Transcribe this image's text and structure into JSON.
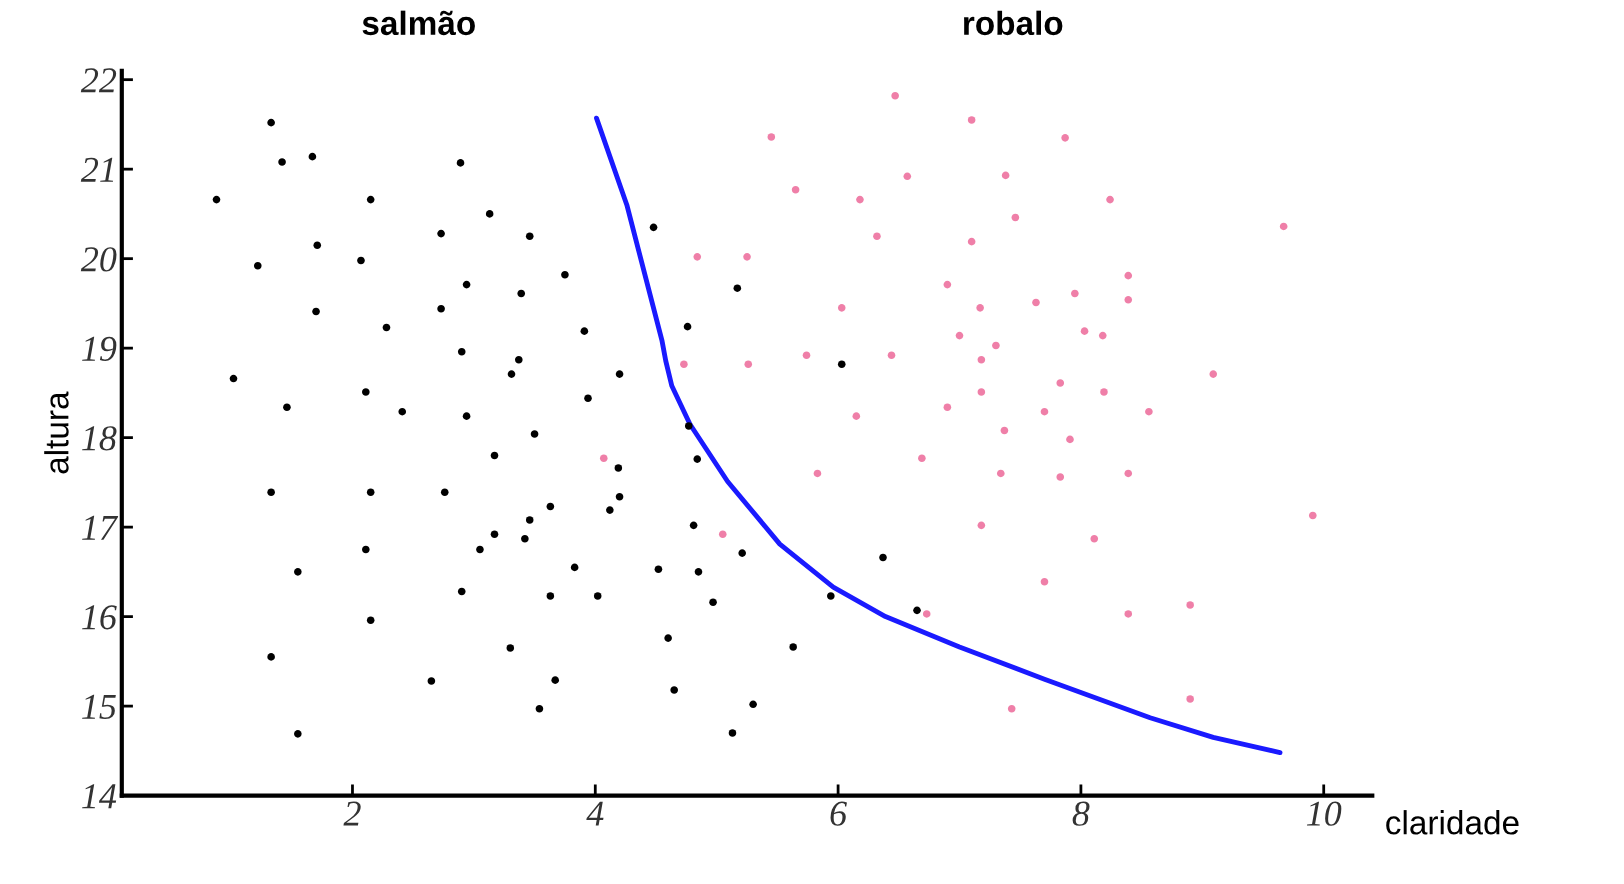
{
  "chart_data": {
    "type": "scatter",
    "xlabel": "claridade",
    "ylabel": "altura",
    "xlim": [
      0.1,
      10.4
    ],
    "ylim": [
      14,
      22.1
    ],
    "xticks": [
      2,
      4,
      6,
      8,
      10
    ],
    "yticks": [
      14,
      15,
      16,
      17,
      18,
      19,
      20,
      21,
      22
    ],
    "grid": false,
    "marker": "circle",
    "annotations": [
      "salmão",
      "robalo"
    ],
    "series": [
      {
        "color": "#000000",
        "x": [
          0.88,
          1.33,
          1.42,
          1.67,
          1.22,
          1.71,
          1.02,
          1.7,
          1.46,
          1.33,
          1.55,
          1.33,
          1.55,
          2.15,
          2.07,
          2.28,
          2.11,
          2.41,
          2.15,
          2.11,
          2.15,
          2.89,
          2.73,
          3.13,
          3.46,
          2.73,
          2.94,
          3.39,
          3.75,
          2.9,
          3.37,
          3.31,
          3.91,
          4.2,
          3.94,
          2.94,
          3.5,
          3.17,
          2.76,
          3.63,
          4.19,
          4.2,
          4.12,
          3.46,
          3.42,
          3.17,
          3.05,
          3.83,
          2.9,
          3.63,
          4.02,
          3.3,
          3.67,
          2.65,
          3.54,
          4.48,
          4.76,
          5.17,
          4.77,
          4.84,
          4.81,
          4.85,
          4.52,
          5.21,
          4.97,
          4.6,
          4.65,
          5.3,
          5.13,
          5.63,
          5.94,
          6.03,
          6.37,
          6.65
        ],
        "values": [
          20.66,
          21.52,
          21.08,
          21.14,
          19.92,
          20.15,
          18.66,
          19.41,
          18.34,
          17.39,
          16.5,
          15.55,
          14.69,
          20.66,
          19.98,
          19.23,
          18.51,
          18.29,
          17.39,
          16.75,
          15.96,
          21.07,
          20.28,
          20.5,
          20.25,
          19.44,
          19.71,
          19.61,
          19.82,
          18.96,
          18.87,
          18.71,
          19.19,
          18.71,
          18.44,
          18.24,
          18.04,
          17.8,
          17.39,
          17.23,
          17.66,
          17.34,
          17.19,
          17.08,
          16.87,
          16.92,
          16.75,
          16.55,
          16.28,
          16.23,
          16.23,
          15.65,
          15.29,
          15.28,
          14.97,
          20.35,
          19.24,
          19.67,
          18.13,
          17.76,
          17.02,
          16.5,
          16.53,
          16.71,
          16.16,
          15.76,
          15.18,
          15.02,
          14.7,
          15.66,
          16.23,
          18.82,
          16.66,
          16.07
        ]
      },
      {
        "color": "#ef7fa8",
        "x": [
          6.47,
          7.1,
          5.45,
          7.87,
          6.57,
          7.38,
          5.65,
          6.18,
          7.46,
          8.24,
          9.67,
          6.32,
          7.1,
          4.84,
          5.25,
          8.39,
          6.9,
          7.95,
          8.39,
          7.63,
          6.03,
          7.17,
          7.0,
          8.03,
          8.18,
          7.3,
          7.18,
          6.44,
          5.74,
          5.26,
          4.73,
          9.09,
          7.83,
          7.18,
          8.19,
          6.9,
          7.7,
          8.56,
          6.15,
          7.37,
          7.91,
          4.07,
          6.69,
          5.83,
          7.34,
          7.83,
          8.39,
          9.91,
          7.18,
          8.11,
          5.05,
          7.7,
          6.73,
          8.39,
          8.9,
          8.9,
          7.43
        ],
        "values": [
          21.82,
          21.55,
          21.36,
          21.35,
          20.92,
          20.93,
          20.77,
          20.66,
          20.46,
          20.66,
          20.36,
          20.25,
          20.19,
          20.02,
          20.02,
          19.81,
          19.71,
          19.61,
          19.54,
          19.51,
          19.45,
          19.45,
          19.14,
          19.19,
          19.14,
          19.03,
          18.87,
          18.92,
          18.92,
          18.82,
          18.82,
          18.71,
          18.61,
          18.51,
          18.51,
          18.34,
          18.29,
          18.29,
          18.24,
          18.08,
          17.98,
          17.77,
          17.77,
          17.6,
          17.6,
          17.56,
          17.6,
          17.13,
          17.02,
          16.87,
          16.92,
          16.39,
          16.03,
          16.03,
          16.13,
          15.08,
          14.97
        ]
      },
      {
        "type": "line",
        "marker": "none",
        "color": "#1a1aff",
        "x": [
          4.01,
          4.26,
          4.55,
          4.58,
          4.63,
          4.78,
          5.09,
          5.52,
          5.96,
          6.39,
          7.0,
          7.7,
          8.57,
          9.09,
          9.64
        ],
        "values": [
          21.57,
          20.6,
          19.08,
          18.86,
          18.58,
          18.15,
          17.51,
          16.81,
          16.33,
          16.0,
          15.66,
          15.3,
          14.87,
          14.65,
          14.48
        ]
      }
    ]
  }
}
